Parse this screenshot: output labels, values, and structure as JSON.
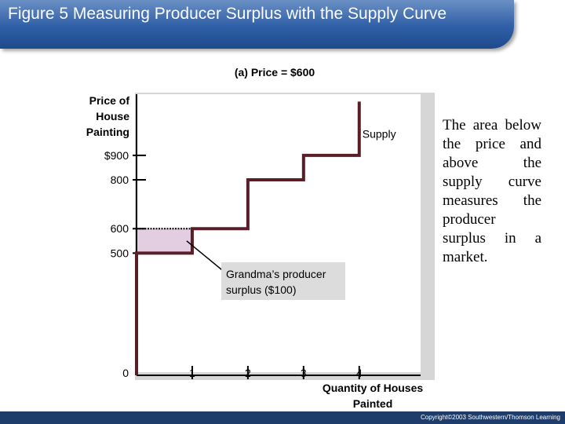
{
  "slide": {
    "title": "Figure 5 Measuring Producer Surplus with the Supply Curve",
    "subtitle": "(a) Price = $600",
    "caption": "The area below the price and above the supply curve measures the producer surplus in a market.",
    "copyright": "Copyright©2003 Southwestern/Thomson Learning"
  },
  "colors": {
    "supply": "#5a1e28",
    "surplus_fill": "#e3cde0",
    "plot_bg": "#ffffff",
    "panel_bg": "#d6d6d6",
    "title_bar": "#2f5fa6"
  },
  "chart_data": {
    "type": "line",
    "title": "(a) Price = $600",
    "xlabel": "Quantity of Houses Painted",
    "ylabel": "Price of House Painting",
    "xlim": [
      0,
      5.3
    ],
    "ylim": [
      0,
      1150
    ],
    "x_ticks": [
      {
        "value": 1,
        "label": "1"
      },
      {
        "value": 2,
        "label": "2"
      },
      {
        "value": 3,
        "label": "3"
      },
      {
        "value": 4,
        "label": "4"
      }
    ],
    "y_ticks": [
      {
        "value": 500,
        "label": "500"
      },
      {
        "value": 600,
        "label": "600"
      },
      {
        "value": 800,
        "label": "800"
      },
      {
        "value": 900,
        "label": "$900"
      }
    ],
    "y_zero_label": "0",
    "series": [
      {
        "name": "Supply",
        "points": [
          [
            0,
            0
          ],
          [
            0,
            500
          ],
          [
            1,
            500
          ],
          [
            1,
            600
          ],
          [
            2,
            600
          ],
          [
            2,
            800
          ],
          [
            3,
            800
          ],
          [
            3,
            900
          ],
          [
            4,
            900
          ],
          [
            4,
            1120
          ]
        ]
      }
    ],
    "price_line": 600,
    "surplus_region": {
      "x0": 0,
      "x1": 1,
      "y0": 500,
      "y1": 600
    },
    "annotation": {
      "text": "Grandma’s producer surplus ($100)",
      "points_to": [
        0.9,
        550
      ]
    },
    "grid": false
  }
}
